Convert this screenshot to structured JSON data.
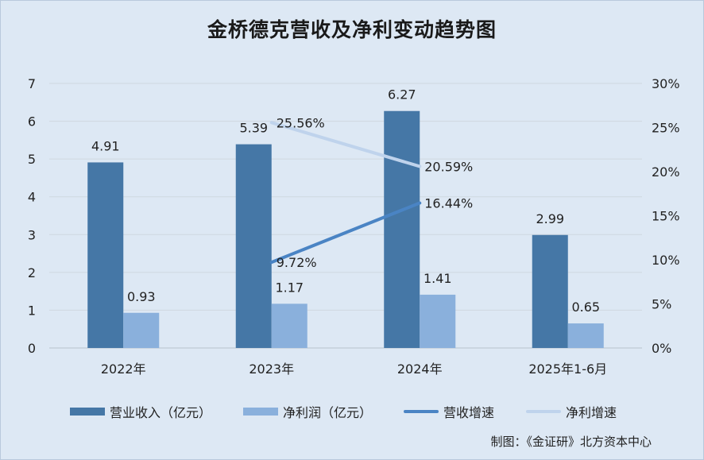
{
  "chart_data": {
    "type": "bar",
    "title": "金桥德克营收及净利变动趋势图",
    "categories": [
      "2022年",
      "2023年",
      "2024年",
      "2025年1-6月"
    ],
    "series": [
      {
        "name": "营业收入（亿元）",
        "kind": "bar",
        "axis": "left",
        "color": "#4577a6",
        "values": [
          4.91,
          5.39,
          6.27,
          2.99
        ],
        "labels": [
          "4.91",
          "5.39",
          "6.27",
          "2.99"
        ]
      },
      {
        "name": "净利润（亿元）",
        "kind": "bar",
        "axis": "left",
        "color": "#8ab0dc",
        "values": [
          0.93,
          1.17,
          1.41,
          0.65
        ],
        "labels": [
          "0.93",
          "1.17",
          "1.41",
          "0.65"
        ]
      },
      {
        "name": "营收增速",
        "kind": "line",
        "axis": "right",
        "color": "#4a84c4",
        "values": [
          null,
          0.0972,
          0.1644,
          null
        ],
        "labels": [
          null,
          "9.72%",
          "16.44%",
          null
        ]
      },
      {
        "name": "净利增速",
        "kind": "line",
        "axis": "right",
        "color": "#bfd3ec",
        "values": [
          null,
          0.2556,
          0.2059,
          null
        ],
        "labels": [
          null,
          "25.56%",
          "20.59%",
          null
        ]
      }
    ],
    "y_left": {
      "min": 0,
      "max": 7,
      "ticks": [
        "0",
        "1",
        "2",
        "3",
        "4",
        "5",
        "6",
        "7"
      ]
    },
    "y_right": {
      "min": 0,
      "max": 0.3,
      "ticks": [
        "0%",
        "5%",
        "10%",
        "15%",
        "20%",
        "25%",
        "30%"
      ]
    },
    "grid": true,
    "legend_position": "bottom"
  },
  "source": "制图：《金证研》北方资本中心"
}
